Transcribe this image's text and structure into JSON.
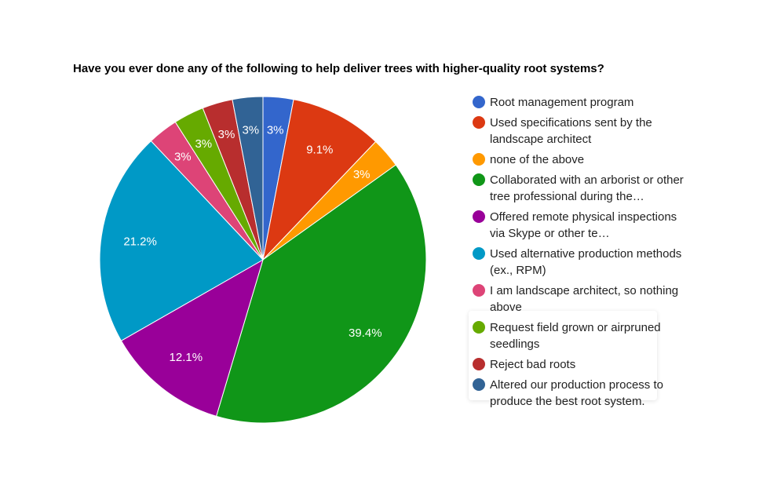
{
  "chart_data": {
    "type": "pie",
    "title": "Have you ever done any of the following to help deliver trees with higher-quality root systems?",
    "slices": [
      {
        "label": "Root management program",
        "value": 3.0,
        "display": "3%",
        "color": "#3366cc"
      },
      {
        "label": "Used specifications sent by the landscape architect",
        "value": 9.1,
        "display": "9.1%",
        "color": "#dc3912"
      },
      {
        "label": "none of the above",
        "value": 3.0,
        "display": "3%",
        "color": "#ff9900"
      },
      {
        "label": "Collaborated with an arborist or other tree professional during the…",
        "value": 39.4,
        "display": "39.4%",
        "color": "#109618"
      },
      {
        "label": "Offered remote physical inspections via Skype or other te…",
        "value": 12.1,
        "display": "12.1%",
        "color": "#990099"
      },
      {
        "label": "Used alternative production methods (ex., RPM)",
        "value": 21.2,
        "display": "21.2%",
        "color": "#0099c6"
      },
      {
        "label": "I am landscape architect, so nothing above",
        "value": 3.0,
        "display": "3%",
        "color": "#dd4477"
      },
      {
        "label": "Request field grown or airpruned seedlings",
        "value": 3.0,
        "display": "3%",
        "color": "#66aa00"
      },
      {
        "label": "Reject bad roots",
        "value": 3.0,
        "display": "3%",
        "color": "#b82e2e"
      },
      {
        "label": "Altered our production process to produce the best root system.",
        "value": 3.0,
        "display": "3%",
        "color": "#316395"
      }
    ],
    "legend_position": "right",
    "start_angle_deg": 0,
    "direction": "clockwise"
  }
}
